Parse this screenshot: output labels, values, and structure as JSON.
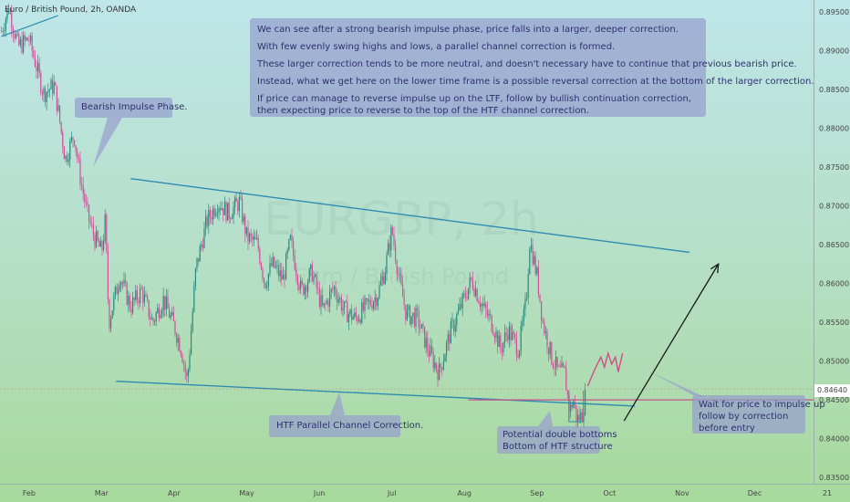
{
  "symbol_title": "Euro / British Pound, 2h, OANDA",
  "watermark": {
    "symbol": "EURGBP, 2h",
    "name": "Euro / British Pound"
  },
  "main_note": [
    "We can see after a strong bearish impulse phase, price falls into a larger, deeper correction.",
    "With few evenly swing highs and lows, a parallel channel correction is formed.",
    "These larger correction tends to be more neutral, and doesn't necessary have to continue that previous bearish price.",
    "Instead, what we get here on the lower time frame is a possible reversal correction at the bottom of the larger correction.",
    "If price can manage to reverse impulse up on the LTF, follow by bullish continuation correction,",
    "then expecting price to reverse to the top of the HTF channel correction."
  ],
  "callouts": {
    "impulse": "Bearish Impulse Phase.",
    "channel": "HTF Parallel Channel Correction.",
    "double_bottom": [
      "Potential double bottoms",
      "Bottom of HTF structure"
    ],
    "entry": [
      "Wait for price to impulse up",
      "follow by correction",
      "before entry"
    ]
  },
  "current_price_label": "0.84640",
  "colors": {
    "bull": "#2a8a7c",
    "bear": "#d0509a",
    "channel": "#2d8cb0",
    "support": "#c8508c",
    "projection": "#d44a8a",
    "arrow": "#1a1a1a",
    "note_bg": "#9aa0cf"
  },
  "chart_data": {
    "type": "candlestick",
    "title": "Euro / British Pound, 2h, OANDA",
    "x_tick_labels": [
      "Feb",
      "Mar",
      "Apr",
      "May",
      "Jun",
      "Jul",
      "Aug",
      "Sep",
      "Oct",
      "Nov",
      "Dec",
      "21"
    ],
    "y_tick_labels": [
      "0.89500",
      "0.89000",
      "0.88500",
      "0.88000",
      "0.87500",
      "0.87000",
      "0.86500",
      "0.86000",
      "0.85500",
      "0.85000",
      "0.84500",
      "0.84000",
      "0.83500"
    ],
    "y_ticks": [
      0.895,
      0.89,
      0.885,
      0.88,
      0.875,
      0.87,
      0.865,
      0.86,
      0.855,
      0.85,
      0.845,
      0.84,
      0.835
    ],
    "ylim": [
      0.8342,
      0.8965
    ],
    "xlim_months": [
      0.6,
      12.1
    ],
    "current_price": 0.8464,
    "price_path": [
      [
        0.62,
        0.8925
      ],
      [
        0.72,
        0.8955
      ],
      [
        0.85,
        0.8905
      ],
      [
        1.0,
        0.8915
      ],
      [
        1.2,
        0.8845
      ],
      [
        1.35,
        0.8855
      ],
      [
        1.5,
        0.876
      ],
      [
        1.62,
        0.8792
      ],
      [
        1.7,
        0.874
      ],
      [
        1.8,
        0.869
      ],
      [
        1.9,
        0.866
      ],
      [
        2.0,
        0.864
      ],
      [
        2.05,
        0.868
      ],
      [
        2.1,
        0.855
      ],
      [
        2.25,
        0.861
      ],
      [
        2.4,
        0.857
      ],
      [
        2.55,
        0.859
      ],
      [
        2.7,
        0.855
      ],
      [
        2.85,
        0.858
      ],
      [
        3.0,
        0.8545
      ],
      [
        3.1,
        0.8515
      ],
      [
        3.18,
        0.8473
      ],
      [
        3.3,
        0.862
      ],
      [
        3.45,
        0.868
      ],
      [
        3.6,
        0.8705
      ],
      [
        3.75,
        0.869
      ],
      [
        3.9,
        0.8705
      ],
      [
        4.0,
        0.866
      ],
      [
        4.15,
        0.865
      ],
      [
        4.25,
        0.86
      ],
      [
        4.35,
        0.8625
      ],
      [
        4.5,
        0.8605
      ],
      [
        4.6,
        0.8655
      ],
      [
        4.75,
        0.859
      ],
      [
        4.9,
        0.8615
      ],
      [
        5.05,
        0.8565
      ],
      [
        5.2,
        0.8595
      ],
      [
        5.35,
        0.8565
      ],
      [
        5.5,
        0.8555
      ],
      [
        5.65,
        0.857
      ],
      [
        5.8,
        0.8585
      ],
      [
        5.9,
        0.8615
      ],
      [
        6.0,
        0.867
      ],
      [
        6.1,
        0.8605
      ],
      [
        6.2,
        0.856
      ],
      [
        6.35,
        0.8555
      ],
      [
        6.5,
        0.8515
      ],
      [
        6.65,
        0.8485
      ],
      [
        6.8,
        0.8535
      ],
      [
        6.95,
        0.857
      ],
      [
        7.1,
        0.8605
      ],
      [
        7.25,
        0.857
      ],
      [
        7.4,
        0.8545
      ],
      [
        7.5,
        0.8515
      ],
      [
        7.6,
        0.854
      ],
      [
        7.75,
        0.8515
      ],
      [
        7.85,
        0.8575
      ],
      [
        7.9,
        0.8655
      ],
      [
        8.0,
        0.861
      ],
      [
        8.08,
        0.855
      ],
      [
        8.2,
        0.8505
      ],
      [
        8.3,
        0.8485
      ],
      [
        8.38,
        0.8485
      ],
      [
        8.45,
        0.8435
      ],
      [
        8.5,
        0.845
      ],
      [
        8.55,
        0.8425
      ],
      [
        8.62,
        0.843
      ],
      [
        8.68,
        0.8462
      ]
    ],
    "channel_upper": [
      [
        2.4,
        0.8735
      ],
      [
        10.1,
        0.864
      ]
    ],
    "channel_lower": [
      [
        2.2,
        0.8474
      ],
      [
        9.35,
        0.8442
      ]
    ],
    "impulse_trendline": [
      [
        0.62,
        0.8918
      ],
      [
        1.4,
        0.8945
      ]
    ],
    "support_level": 0.845,
    "projection_path": [
      [
        8.7,
        0.8468
      ],
      [
        8.8,
        0.849
      ],
      [
        8.88,
        0.8505
      ],
      [
        8.93,
        0.8492
      ],
      [
        8.98,
        0.851
      ],
      [
        9.03,
        0.8496
      ],
      [
        9.08,
        0.8505
      ],
      [
        9.12,
        0.8486
      ],
      [
        9.18,
        0.851
      ]
    ],
    "target_arrow": [
      [
        9.2,
        0.8423
      ],
      [
        10.5,
        0.8625
      ]
    ]
  }
}
